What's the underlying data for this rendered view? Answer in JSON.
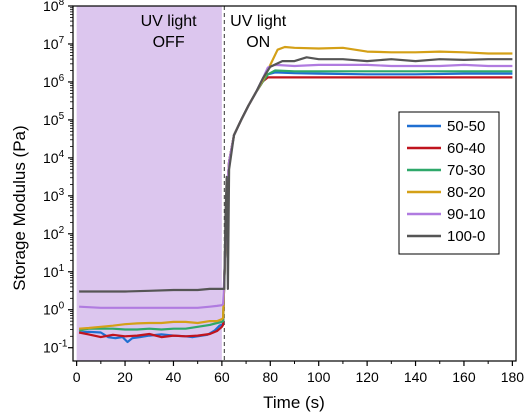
{
  "chart_data": {
    "type": "line",
    "xlabel": "Time (s)",
    "ylabel": "Storage Modulus (Pa)",
    "xlim": [
      -1.5,
      181.5
    ],
    "xticks": [
      0,
      20,
      40,
      60,
      80,
      100,
      120,
      140,
      160,
      180
    ],
    "ylog": true,
    "ylim_log10": [
      -1.35,
      8.0
    ],
    "yticks_log10": [
      -1,
      0,
      1,
      2,
      3,
      4,
      5,
      6,
      7,
      8
    ],
    "yticks_text": [
      "10",
      "10",
      "10",
      "10",
      "10",
      "10",
      "10",
      "10",
      "10",
      "10"
    ],
    "yticks_exp": [
      "-1",
      "0",
      "1",
      "2",
      "3",
      "4",
      "5",
      "6",
      "7",
      "8"
    ],
    "grid": false,
    "legend_position": "right-middle",
    "shaded_region": {
      "x_from": 0,
      "x_to": 60,
      "color": "#dcc6ee"
    },
    "annotations": [
      {
        "lines": [
          "UV light",
          "OFF"
        ],
        "x": 38,
        "y": 7.47
      },
      {
        "lines": [
          "UV light",
          "ON"
        ],
        "x": 75,
        "y": 7.47
      }
    ],
    "divider_x": 61,
    "series": [
      {
        "name": "50-50",
        "color": "#1f6fd1",
        "x": [
          1,
          5,
          10,
          13,
          16,
          19,
          21,
          23,
          26,
          30,
          35,
          40,
          45,
          48,
          50,
          54,
          57,
          59,
          60.5,
          61,
          62,
          63,
          65,
          68,
          71,
          74,
          77,
          79,
          82,
          90,
          100,
          120,
          140,
          160,
          180
        ],
        "y": [
          -0.6,
          -0.58,
          -0.6,
          -0.72,
          -0.75,
          -0.72,
          -0.85,
          -0.75,
          -0.72,
          -0.68,
          -0.65,
          -0.68,
          -0.7,
          -0.72,
          -0.7,
          -0.66,
          -0.55,
          -0.42,
          -0.38,
          0.8,
          3.0,
          3.9,
          4.6,
          5.0,
          5.38,
          5.72,
          6.02,
          6.2,
          6.25,
          6.23,
          6.22,
          6.2,
          6.2,
          6.22,
          6.22
        ]
      },
      {
        "name": "60-40",
        "color": "#c0141e",
        "x": [
          1,
          5,
          10,
          15,
          20,
          25,
          30,
          35,
          40,
          45,
          50,
          55,
          58,
          60,
          60.5,
          61,
          62,
          63,
          65,
          68,
          71,
          74,
          77,
          79,
          82,
          90,
          100,
          120,
          140,
          160,
          180
        ],
        "y": [
          -0.6,
          -0.65,
          -0.72,
          -0.66,
          -0.7,
          -0.68,
          -0.64,
          -0.72,
          -0.68,
          -0.7,
          -0.68,
          -0.64,
          -0.56,
          -0.45,
          -0.4,
          0.8,
          3.0,
          3.9,
          4.6,
          5.0,
          5.38,
          5.72,
          6.02,
          6.12,
          6.12,
          6.12,
          6.12,
          6.12,
          6.12,
          6.12,
          6.12
        ]
      },
      {
        "name": "70-30",
        "color": "#2ea86a",
        "x": [
          1,
          5,
          10,
          15,
          20,
          25,
          30,
          35,
          40,
          45,
          50,
          55,
          58,
          60,
          60.5,
          61,
          62,
          63,
          65,
          68,
          71,
          74,
          77,
          79,
          82,
          90,
          100,
          120,
          140,
          160,
          180
        ],
        "y": [
          -0.55,
          -0.5,
          -0.5,
          -0.5,
          -0.52,
          -0.52,
          -0.5,
          -0.52,
          -0.5,
          -0.5,
          -0.45,
          -0.4,
          -0.35,
          -0.32,
          -0.3,
          0.8,
          3.0,
          3.9,
          4.6,
          5.0,
          5.38,
          5.72,
          6.02,
          6.2,
          6.3,
          6.28,
          6.28,
          6.28,
          6.28,
          6.28,
          6.28
        ]
      },
      {
        "name": "80-20",
        "color": "#d4a017",
        "x": [
          1,
          5,
          10,
          15,
          20,
          25,
          30,
          35,
          40,
          45,
          50,
          55,
          58,
          60,
          60.5,
          61,
          62,
          63,
          65,
          68,
          71,
          74,
          77,
          80,
          83,
          86,
          90,
          100,
          110,
          115,
          120,
          130,
          140,
          150,
          160,
          170,
          180
        ],
        "y": [
          -0.5,
          -0.48,
          -0.45,
          -0.42,
          -0.38,
          -0.36,
          -0.35,
          -0.35,
          -0.32,
          -0.32,
          -0.35,
          -0.3,
          -0.3,
          -0.25,
          -0.22,
          0.8,
          3.0,
          3.9,
          4.6,
          5.0,
          5.38,
          5.72,
          6.05,
          6.45,
          6.85,
          6.92,
          6.9,
          6.88,
          6.9,
          6.85,
          6.8,
          6.78,
          6.78,
          6.8,
          6.78,
          6.75,
          6.75
        ]
      },
      {
        "name": "90-10",
        "color": "#b07be0",
        "x": [
          1,
          10,
          20,
          30,
          40,
          50,
          55,
          58,
          60,
          60.5,
          61,
          62,
          63,
          65,
          68,
          71,
          74,
          77,
          79,
          82,
          90,
          100,
          110,
          120,
          130,
          140,
          150,
          160,
          170,
          180
        ],
        "y": [
          0.08,
          0.05,
          0.05,
          0.05,
          0.05,
          0.05,
          0.08,
          0.1,
          0.12,
          0.15,
          0.9,
          3.0,
          3.9,
          4.6,
          5.0,
          5.38,
          5.72,
          6.1,
          6.38,
          6.45,
          6.42,
          6.45,
          6.45,
          6.45,
          6.42,
          6.42,
          6.42,
          6.45,
          6.42,
          6.42
        ]
      },
      {
        "name": "100-0",
        "color": "#555555",
        "x": [
          1,
          10,
          20,
          30,
          40,
          50,
          55,
          58,
          60,
          61,
          61.5,
          62,
          62.5,
          63,
          65,
          68,
          71,
          74,
          77,
          80,
          85,
          90,
          95,
          100,
          110,
          120,
          130,
          140,
          150,
          160,
          170,
          180
        ],
        "y": [
          0.48,
          0.48,
          0.48,
          0.5,
          0.52,
          0.52,
          0.55,
          0.55,
          0.55,
          0.55,
          2.5,
          3.5,
          0.55,
          3.7,
          4.6,
          5.0,
          5.38,
          5.72,
          6.1,
          6.4,
          6.55,
          6.55,
          6.65,
          6.6,
          6.6,
          6.55,
          6.6,
          6.55,
          6.6,
          6.58,
          6.6,
          6.6
        ]
      }
    ]
  }
}
